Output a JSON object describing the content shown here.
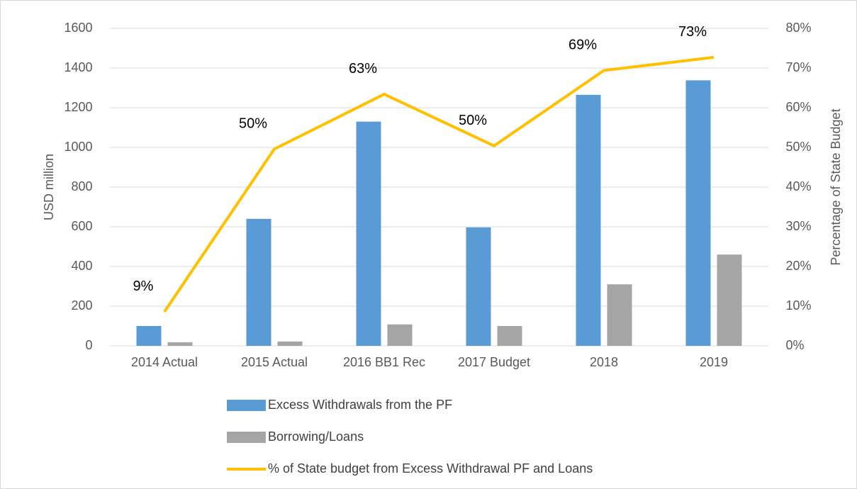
{
  "chart_data": {
    "type": "bar-line",
    "ylabel": "USD  million",
    "y2label": "Percentage of State Budget",
    "categories": [
      "2014 Actual",
      "2015 Actual",
      "2016 BB1 Rec",
      "2017 Budget",
      "2018",
      "2019"
    ],
    "series": [
      {
        "name": "Excess Withdrawals from the PF",
        "type": "bar",
        "color": "#5b9bd5",
        "values": [
          100,
          640,
          1130,
          597,
          1265,
          1338
        ]
      },
      {
        "name": "Borrowing/Loans",
        "type": "bar",
        "color": "#a5a5a5",
        "values": [
          18,
          22,
          108,
          100,
          310,
          460
        ]
      },
      {
        "name": "% of State budget from Excess Withdrawal PF and Loans",
        "type": "line",
        "axis": "y2",
        "color": "#ffc000",
        "values": [
          8.6,
          49.6,
          63.4,
          50.4,
          69.4,
          72.7
        ],
        "value_labels": [
          "9%",
          "50%",
          "63%",
          "50%",
          "69%",
          "73%"
        ]
      }
    ],
    "ylim": [
      0,
      1600
    ],
    "yticks": [
      0,
      200,
      400,
      600,
      800,
      1000,
      1200,
      1400,
      1600
    ],
    "y2lim": [
      0,
      80
    ],
    "y2ticks": [
      {
        "value": 0,
        "label": "0%"
      },
      {
        "value": 10,
        "label": "10%"
      },
      {
        "value": 20,
        "label": "20%"
      },
      {
        "value": 30,
        "label": "30%"
      },
      {
        "value": 40,
        "label": "40%"
      },
      {
        "value": 50,
        "label": "50%"
      },
      {
        "value": 60,
        "label": "60%"
      },
      {
        "value": 70,
        "label": "70%"
      },
      {
        "value": 80,
        "label": "80%"
      }
    ],
    "grid": true,
    "legend": "bottom"
  }
}
